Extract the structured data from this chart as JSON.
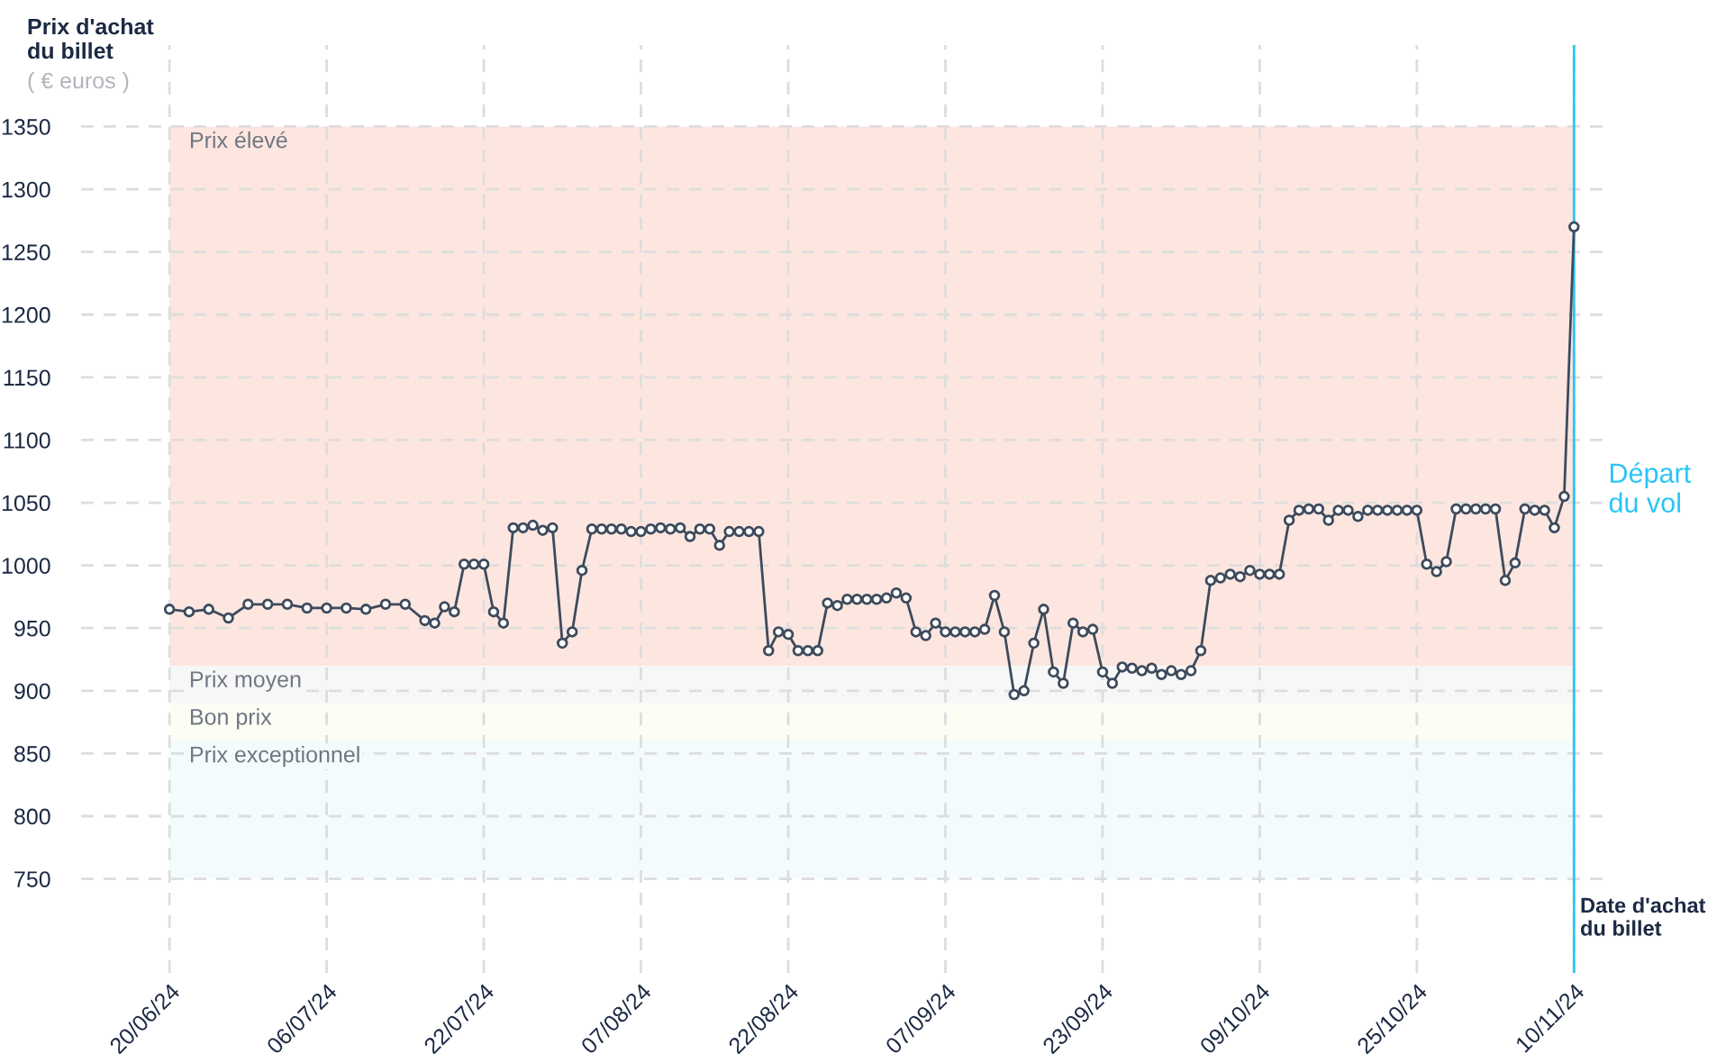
{
  "chart_data": {
    "type": "line",
    "ylabel": "Prix d'achat\ndu billet",
    "subtitle": "( € euros )",
    "xlabel": "Date d'achat\ndu billet",
    "x": [
      "2024-06-20",
      "2024-06-22",
      "2024-06-24",
      "2024-06-26",
      "2024-06-28",
      "2024-06-30",
      "2024-07-02",
      "2024-07-04",
      "2024-07-06",
      "2024-07-08",
      "2024-07-10",
      "2024-07-12",
      "2024-07-14",
      "2024-07-16",
      "2024-07-17",
      "2024-07-18",
      "2024-07-19",
      "2024-07-20",
      "2024-07-21",
      "2024-07-22",
      "2024-07-23",
      "2024-07-24",
      "2024-07-25",
      "2024-07-26",
      "2024-07-27",
      "2024-07-28",
      "2024-07-29",
      "2024-07-30",
      "2024-07-31",
      "2024-08-01",
      "2024-08-02",
      "2024-08-03",
      "2024-08-04",
      "2024-08-05",
      "2024-08-06",
      "2024-08-07",
      "2024-08-08",
      "2024-08-09",
      "2024-08-10",
      "2024-08-11",
      "2024-08-12",
      "2024-08-13",
      "2024-08-14",
      "2024-08-15",
      "2024-08-16",
      "2024-08-17",
      "2024-08-18",
      "2024-08-19",
      "2024-08-20",
      "2024-08-21",
      "2024-08-22",
      "2024-08-23",
      "2024-08-24",
      "2024-08-25",
      "2024-08-26",
      "2024-08-27",
      "2024-08-28",
      "2024-08-29",
      "2024-08-30",
      "2024-08-31",
      "2024-09-01",
      "2024-09-02",
      "2024-09-03",
      "2024-09-04",
      "2024-09-05",
      "2024-09-06",
      "2024-09-07",
      "2024-09-08",
      "2024-09-09",
      "2024-09-10",
      "2024-09-11",
      "2024-09-12",
      "2024-09-13",
      "2024-09-14",
      "2024-09-15",
      "2024-09-16",
      "2024-09-17",
      "2024-09-18",
      "2024-09-19",
      "2024-09-20",
      "2024-09-21",
      "2024-09-22",
      "2024-09-23",
      "2024-09-24",
      "2024-09-25",
      "2024-09-26",
      "2024-09-27",
      "2024-09-28",
      "2024-09-29",
      "2024-09-30",
      "2024-10-01",
      "2024-10-02",
      "2024-10-03",
      "2024-10-04",
      "2024-10-05",
      "2024-10-06",
      "2024-10-07",
      "2024-10-08",
      "2024-10-09",
      "2024-10-10",
      "2024-10-11",
      "2024-10-12",
      "2024-10-13",
      "2024-10-14",
      "2024-10-15",
      "2024-10-16",
      "2024-10-17",
      "2024-10-18",
      "2024-10-19",
      "2024-10-20",
      "2024-10-21",
      "2024-10-22",
      "2024-10-23",
      "2024-10-24",
      "2024-10-25",
      "2024-10-26",
      "2024-10-27",
      "2024-10-28",
      "2024-10-29",
      "2024-10-30",
      "2024-10-31",
      "2024-11-01",
      "2024-11-02",
      "2024-11-03",
      "2024-11-04",
      "2024-11-05",
      "2024-11-06",
      "2024-11-07",
      "2024-11-08",
      "2024-11-09",
      "2024-11-10"
    ],
    "series": [
      {
        "color": "#3d4a5c",
        "values": [
          965,
          963,
          965,
          958,
          969,
          969,
          969,
          966,
          966,
          966,
          965,
          969,
          969,
          956,
          954,
          967,
          963,
          1001,
          1001,
          1001,
          963,
          954,
          1030,
          1030,
          1032,
          1028,
          1030,
          938,
          947,
          996,
          1029,
          1029,
          1029,
          1029,
          1027,
          1027,
          1029,
          1030,
          1029,
          1030,
          1023,
          1029,
          1029,
          1016,
          1027,
          1027,
          1027,
          1027,
          932,
          947,
          945,
          932,
          932,
          932,
          970,
          968,
          973,
          973,
          973,
          973,
          974,
          978,
          974,
          947,
          944,
          954,
          947,
          947,
          947,
          947,
          949,
          976,
          947,
          897,
          900,
          938,
          965,
          915,
          906,
          954,
          947,
          949,
          915,
          906,
          919,
          918,
          916,
          918,
          913,
          916,
          913,
          916,
          932,
          988,
          990,
          993,
          991,
          996,
          993,
          993,
          993,
          1036,
          1044,
          1045,
          1045,
          1036,
          1044,
          1044,
          1039,
          1044,
          1044,
          1044,
          1044,
          1044,
          1044,
          1001,
          995,
          1003,
          1045,
          1045,
          1045,
          1045,
          1045,
          988,
          1002,
          1045,
          1044,
          1044,
          1030,
          1055,
          1270
        ]
      }
    ],
    "marker": "circle",
    "line_style": "solid",
    "xlim": [
      "2024-06-11",
      "2024-11-13"
    ],
    "xticks": [
      {
        "value": "2024-06-20",
        "label": "20/06/24"
      },
      {
        "value": "2024-07-06",
        "label": "06/07/24"
      },
      {
        "value": "2024-07-22",
        "label": "22/07/24"
      },
      {
        "value": "2024-08-07",
        "label": "07/08/24"
      },
      {
        "value": "2024-08-22",
        "label": "22/08/24"
      },
      {
        "value": "2024-09-07",
        "label": "07/09/24"
      },
      {
        "value": "2024-09-23",
        "label": "23/09/24"
      },
      {
        "value": "2024-10-09",
        "label": "09/10/24"
      },
      {
        "value": "2024-10-25",
        "label": "25/10/24"
      },
      {
        "value": "2024-11-10",
        "label": "10/11/24"
      }
    ],
    "ylim": [
      675,
      1415
    ],
    "yticks": [
      750,
      800,
      850,
      900,
      950,
      1000,
      1050,
      1100,
      1150,
      1200,
      1250,
      1300,
      1350
    ],
    "grid": true,
    "bands": [
      {
        "axis": "y",
        "from": 920,
        "to": 1350,
        "label": "Prix élevé",
        "color": "#fde6df"
      },
      {
        "axis": "y",
        "from": 890,
        "to": 920,
        "label": "Prix moyen",
        "color": "#f7f7f7"
      },
      {
        "axis": "y",
        "from": 860,
        "to": 890,
        "label": "Bon prix",
        "color": "#fcfdf3"
      },
      {
        "axis": "y",
        "from": 750,
        "to": 860,
        "label": "Prix exceptionnel",
        "color": "#f3fbfd"
      }
    ],
    "ref_lines": [
      {
        "axis": "x",
        "value": "2024-11-10",
        "label": "Départ\ndu vol",
        "color": "#29c5f6"
      }
    ]
  }
}
